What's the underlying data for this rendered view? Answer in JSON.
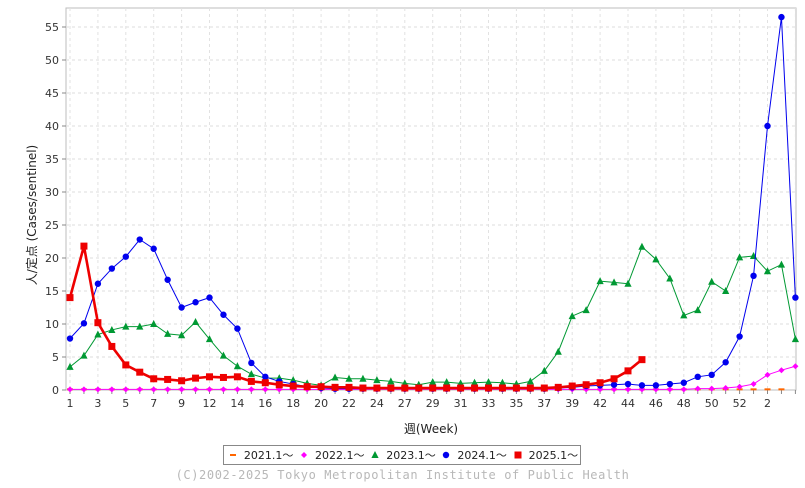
{
  "chart_data": {
    "type": "line",
    "xlabel": "週(Week)",
    "ylabel": "人/定点 (Cases/sentinel)",
    "xlim": [
      0,
      53
    ],
    "ylim": [
      0,
      58
    ],
    "x_ticks": [
      "1",
      "3",
      "5",
      "7",
      "9",
      "12",
      "14",
      "16",
      "18",
      "20",
      "22",
      "24",
      "27",
      "29",
      "31",
      "33",
      "35",
      "37",
      "39",
      "42",
      "44",
      "46",
      "48",
      "50",
      "52",
      "2"
    ],
    "y_ticks": [
      "0",
      "5",
      "10",
      "15",
      "20",
      "25",
      "30",
      "35",
      "40",
      "45",
      "50",
      "55"
    ],
    "grid": true,
    "legend_position": "bottom",
    "series": [
      {
        "name": "2021.1～",
        "color": "#ff6600",
        "marker": "dash",
        "values": [
          0.1,
          0.1,
          0.1,
          0.1,
          0.1,
          0.1,
          0.1,
          0.1,
          0.1,
          0.1,
          0.1,
          0.1,
          0.1,
          0.1,
          0.1,
          0.1,
          0.1,
          0.1,
          0.1,
          0.1,
          0.1,
          0.1,
          0.1,
          0.1,
          0.1,
          0.1,
          0.1,
          0.1,
          0.1,
          0.1,
          0.1,
          0.1,
          0.1,
          0.1,
          0.1,
          0.1,
          0.1,
          0.1,
          0.1,
          0.1,
          0.1,
          0.1,
          0.1,
          0.1,
          0.1,
          0.1,
          0.1,
          0.1,
          0.1,
          0.1,
          0.1,
          0.1
        ]
      },
      {
        "name": "2022.1～",
        "color": "#ff00ff",
        "marker": "diamond",
        "values": [
          0.1,
          0.1,
          0.1,
          0.1,
          0.1,
          0.1,
          0.1,
          0.1,
          0.1,
          0.1,
          0.1,
          0.1,
          0.1,
          0.1,
          0.1,
          0.1,
          0.1,
          0.1,
          0.1,
          0.1,
          0.1,
          0.1,
          0.1,
          0.1,
          0.1,
          0.1,
          0.1,
          0.1,
          0.1,
          0.1,
          0.1,
          0.1,
          0.1,
          0.1,
          0.1,
          0.1,
          0.1,
          0.1,
          0.1,
          0.1,
          0.1,
          0.1,
          0.1,
          0.1,
          0.1,
          0.2,
          0.2,
          0.3,
          0.5,
          0.9,
          2.3,
          3.0,
          3.6
        ]
      },
      {
        "name": "2023.1～",
        "color": "#009933",
        "marker": "triangle",
        "values": [
          3.5,
          5.2,
          8.4,
          9.1,
          9.6,
          9.6,
          10.0,
          8.5,
          8.3,
          10.3,
          7.7,
          5.2,
          3.6,
          2.4,
          1.8,
          1.8,
          1.5,
          1.0,
          0.7,
          1.9,
          1.7,
          1.7,
          1.5,
          1.3,
          1.0,
          0.8,
          1.2,
          1.2,
          1.0,
          1.1,
          1.2,
          1.1,
          0.9,
          1.3,
          2.9,
          5.8,
          11.2,
          12.1,
          16.5,
          16.3,
          16.1,
          21.7,
          19.8,
          16.9,
          11.3,
          12.1,
          16.4,
          15.0,
          20.1,
          20.3,
          18.0,
          19.0,
          7.7
        ]
      },
      {
        "name": "2024.1～",
        "color": "#0000ee",
        "marker": "circle",
        "values": [
          7.8,
          10.1,
          16.1,
          18.4,
          20.2,
          22.8,
          21.4,
          16.7,
          12.5,
          13.3,
          14.0,
          11.4,
          9.3,
          4.1,
          2.0,
          1.3,
          0.9,
          0.5,
          0.3,
          0.2,
          0.2,
          0.2,
          0.2,
          0.2,
          0.2,
          0.2,
          0.2,
          0.2,
          0.2,
          0.2,
          0.2,
          0.2,
          0.2,
          0.2,
          0.2,
          0.3,
          0.4,
          0.6,
          0.7,
          0.8,
          0.9,
          0.7,
          0.7,
          0.9,
          1.1,
          2.0,
          2.3,
          4.2,
          8.1,
          17.3,
          40.0,
          56.5,
          14.0
        ]
      },
      {
        "name": "2025.1～",
        "color": "#ee0000",
        "marker": "square",
        "values": [
          14.0,
          21.8,
          10.2,
          6.6,
          3.8,
          2.7,
          1.7,
          1.6,
          1.4,
          1.8,
          2.0,
          1.9,
          2.0,
          1.3,
          1.1,
          0.8,
          0.6,
          0.5,
          0.5,
          0.4,
          0.4,
          0.3,
          0.3,
          0.3,
          0.3,
          0.3,
          0.3,
          0.3,
          0.3,
          0.3,
          0.3,
          0.3,
          0.3,
          0.3,
          0.3,
          0.4,
          0.6,
          0.8,
          1.1,
          1.7,
          2.9,
          4.6
        ]
      }
    ]
  },
  "footer": {
    "credit": "(C)2002-2025 Tokyo Metropolitan Institute of Public Health"
  }
}
